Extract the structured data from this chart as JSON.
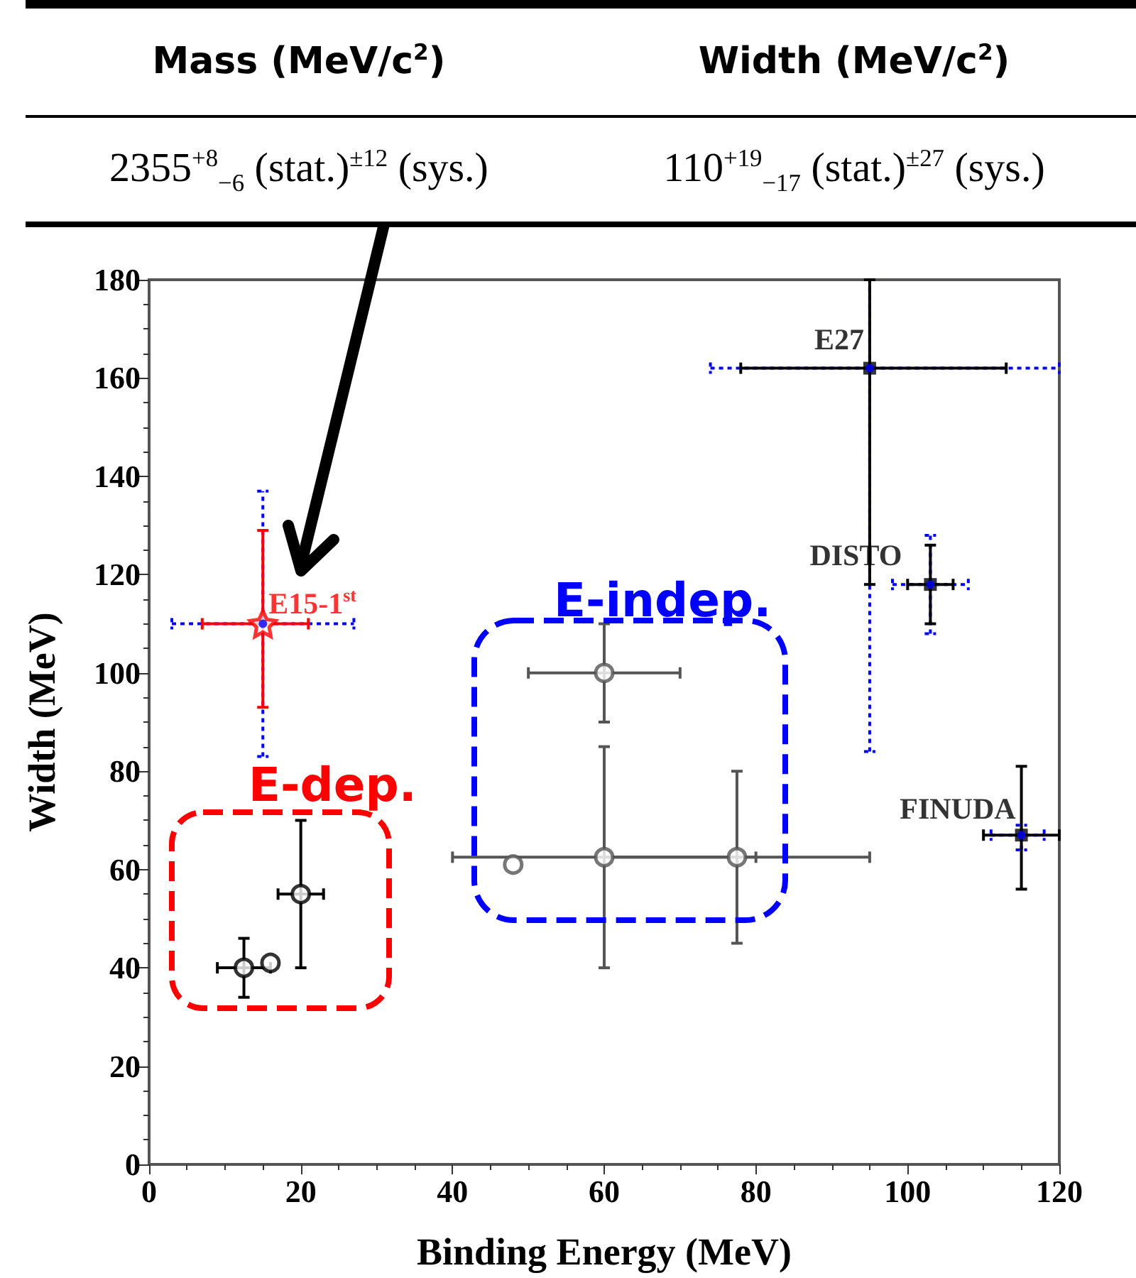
{
  "chart_data": {
    "type": "scatter",
    "xlabel": "Binding Energy (MeV)",
    "ylabel": "Width (MeV)",
    "xlim": [
      0,
      120
    ],
    "xticks": [
      0,
      20,
      40,
      60,
      80,
      100,
      120
    ],
    "ylim": [
      0,
      180
    ],
    "yticks": [
      0,
      20,
      40,
      60,
      80,
      100,
      120,
      140,
      160,
      180
    ],
    "annotations": [
      "Mass (MeV/c$^{2}$)",
      "Width (MeV/c$^{2}$)",
      "2355$^{+8}$$_{−6}$ (stat.)$^{±12}$ (sys.)",
      "110$^{+19}$$_{−17}$ (stat.)$^{±27}$ (sys.)",
      "E-dep.",
      "E-indep.",
      {
        "text": "E15-1$^{st}$",
        "x": 15,
        "y": 110
      },
      {
        "text": "E27",
        "x": 95,
        "y": 162
      },
      {
        "text": "DISTO",
        "x": 103,
        "y": 118
      },
      {
        "text": "FINUDA",
        "x": 115,
        "y": 67
      }
    ],
    "series": [
      {
        "color": "#0000ff",
        "marker": "circle",
        "line_style": "dotted",
        "x": [
          15,
          95,
          103,
          115
        ],
        "values": [
          110,
          162,
          118,
          67
        ],
        "xerrors": [
          [
            3,
            27
          ],
          [
            74,
            120
          ],
          [
            98,
            108
          ],
          [
            111,
            118
          ]
        ],
        "errors": [
          [
            83,
            137
          ],
          [
            84,
            180
          ],
          [
            108,
            128
          ],
          [
            64,
            69
          ]
        ]
      },
      {
        "color": "#000000",
        "marker": "square",
        "x": [
          95,
          103,
          115
        ],
        "values": [
          162,
          118,
          67
        ],
        "xerrors": [
          [
            78,
            113
          ],
          [
            100,
            106
          ],
          [
            110,
            120
          ]
        ],
        "errors": [
          [
            118,
            180
          ],
          [
            110,
            126
          ],
          [
            56,
            81
          ]
        ]
      },
      {
        "color": "#ff0000",
        "marker": "star",
        "x": [
          15
        ],
        "values": [
          110
        ],
        "xerrors": [
          [
            7,
            21
          ]
        ],
        "errors": [
          [
            93,
            129
          ]
        ]
      },
      {
        "color": "#000000",
        "marker": "circle",
        "x": [
          12.5,
          16,
          20
        ],
        "values": [
          40,
          41,
          55
        ],
        "xerrors": [
          [
            9,
            16
          ],
          null,
          [
            17,
            23
          ]
        ],
        "errors": [
          [
            34,
            46
          ],
          null,
          [
            40,
            70
          ]
        ]
      },
      {
        "color": "#555555",
        "marker": "circle",
        "x": [
          48,
          60,
          60,
          77.5
        ],
        "values": [
          61,
          100,
          62.5,
          62.5
        ],
        "xerrors": [
          null,
          [
            50,
            70
          ],
          [
            40,
            80
          ],
          [
            60,
            95
          ]
        ],
        "errors": [
          null,
          [
            90,
            110
          ],
          [
            40,
            85
          ],
          [
            45,
            80
          ]
        ]
      }
    ]
  }
}
